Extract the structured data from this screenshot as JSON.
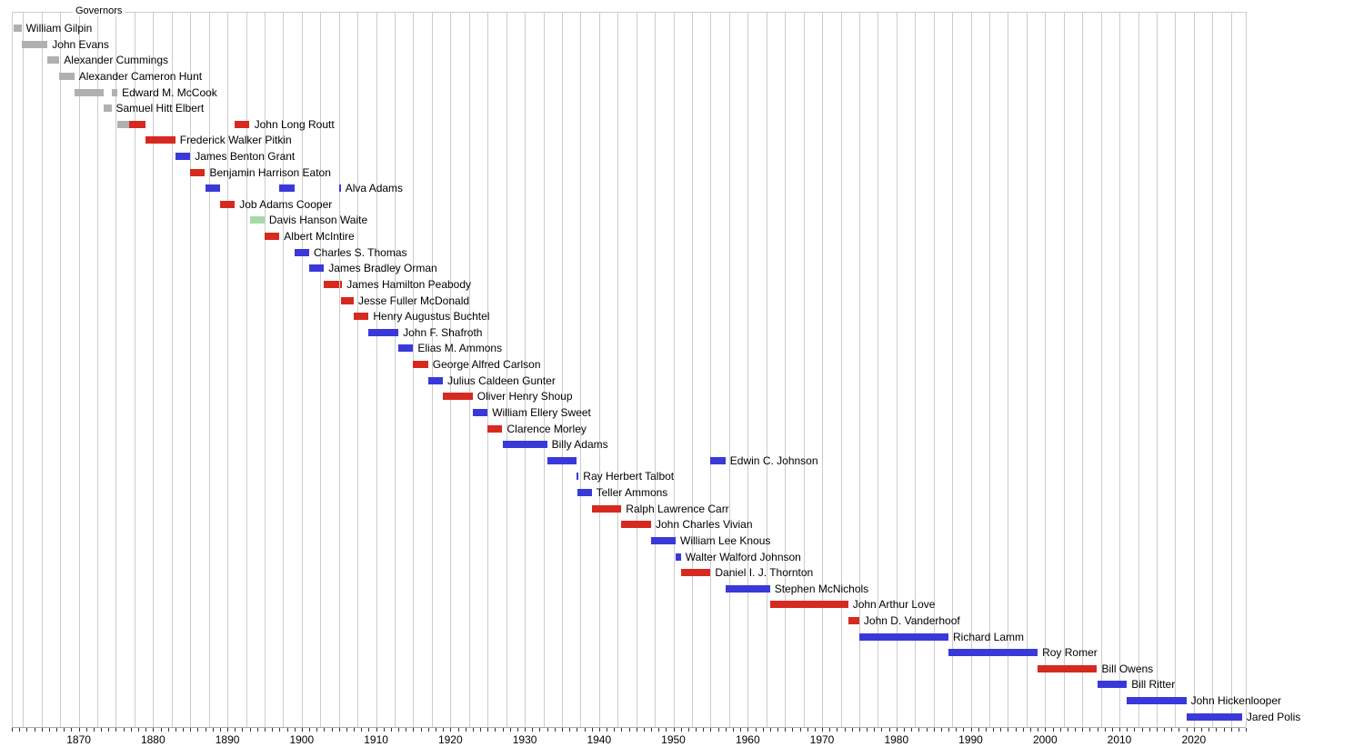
{
  "chart_data": {
    "type": "gantt",
    "title": "Governors",
    "x_axis": {
      "unit": "year",
      "range": [
        1861,
        2027
      ],
      "tick_interval_years": 1,
      "gridline_interval_years": 2.5,
      "decade_labels": [
        1870,
        1880,
        1890,
        1900,
        1910,
        1920,
        1930,
        1940,
        1950,
        1960,
        1970,
        1980,
        1990,
        2000,
        2010,
        2020
      ]
    },
    "colors": {
      "territorial": "#b0b0b0",
      "republican": "#d62a20",
      "democratic": "#3939d9",
      "populist": "#a9d9a9",
      "grid": "#cccccc",
      "axis_line": "#aaaaaa",
      "tick": "#333333",
      "text": "#000000"
    },
    "rows": [
      {
        "name": "William Gilpin",
        "terms": [
          [
            1861.2,
            1862.3,
            "territorial"
          ]
        ]
      },
      {
        "name": "John Evans",
        "terms": [
          [
            1862.3,
            1865.8,
            "territorial"
          ]
        ]
      },
      {
        "name": "Alexander Cummings",
        "terms": [
          [
            1865.8,
            1867.4,
            "territorial"
          ]
        ]
      },
      {
        "name": "Alexander Cameron Hunt",
        "terms": [
          [
            1867.4,
            1869.4,
            "territorial"
          ]
        ]
      },
      {
        "name": "Edward M. McCook",
        "terms": [
          [
            1869.4,
            1873.3,
            "territorial"
          ],
          [
            1874.4,
            1875.2,
            "territorial"
          ]
        ]
      },
      {
        "name": "Samuel Hitt Elbert",
        "terms": [
          [
            1873.3,
            1874.4,
            "territorial"
          ]
        ]
      },
      {
        "name": "John Long Routt",
        "terms": [
          [
            1875.2,
            1876.8,
            "territorial"
          ],
          [
            1876.8,
            1879.0,
            "republican"
          ],
          [
            1891.0,
            1893.0,
            "republican"
          ]
        ]
      },
      {
        "name": "Frederick Walker Pitkin",
        "terms": [
          [
            1879.0,
            1883.0,
            "republican"
          ]
        ]
      },
      {
        "name": "James Benton Grant",
        "terms": [
          [
            1883.0,
            1885.0,
            "democratic"
          ]
        ]
      },
      {
        "name": "Benjamin Harrison Eaton",
        "terms": [
          [
            1885.0,
            1887.0,
            "republican"
          ]
        ]
      },
      {
        "name": "Alva Adams",
        "terms": [
          [
            1887.0,
            1889.0,
            "democratic"
          ],
          [
            1897.0,
            1899.0,
            "democratic"
          ],
          [
            1905.0,
            1905.2,
            "democratic"
          ]
        ]
      },
      {
        "name": "Job Adams Cooper",
        "terms": [
          [
            1889.0,
            1891.0,
            "republican"
          ]
        ]
      },
      {
        "name": "Davis Hanson Waite",
        "terms": [
          [
            1893.0,
            1895.0,
            "populist"
          ]
        ]
      },
      {
        "name": "Albert McIntire",
        "terms": [
          [
            1895.0,
            1897.0,
            "republican"
          ]
        ]
      },
      {
        "name": "Charles S. Thomas",
        "terms": [
          [
            1899.0,
            1901.0,
            "democratic"
          ]
        ]
      },
      {
        "name": "James Bradley Orman",
        "terms": [
          [
            1901.0,
            1903.0,
            "democratic"
          ]
        ]
      },
      {
        "name": "James Hamilton Peabody",
        "terms": [
          [
            1903.0,
            1905.0,
            "republican"
          ],
          [
            1905.2,
            1905.3,
            "republican"
          ]
        ]
      },
      {
        "name": "Jesse Fuller McDonald",
        "terms": [
          [
            1905.3,
            1907.0,
            "republican"
          ]
        ]
      },
      {
        "name": "Henry Augustus Buchtel",
        "terms": [
          [
            1907.0,
            1909.0,
            "republican"
          ]
        ]
      },
      {
        "name": "John F. Shafroth",
        "terms": [
          [
            1909.0,
            1913.0,
            "democratic"
          ]
        ]
      },
      {
        "name": "Elias M. Ammons",
        "terms": [
          [
            1913.0,
            1915.0,
            "democratic"
          ]
        ]
      },
      {
        "name": "George Alfred Carlson",
        "terms": [
          [
            1915.0,
            1917.0,
            "republican"
          ]
        ]
      },
      {
        "name": "Julius Caldeen Gunter",
        "terms": [
          [
            1917.0,
            1919.0,
            "democratic"
          ]
        ]
      },
      {
        "name": "Oliver Henry Shoup",
        "terms": [
          [
            1919.0,
            1923.0,
            "republican"
          ]
        ]
      },
      {
        "name": "William Ellery Sweet",
        "terms": [
          [
            1923.0,
            1925.0,
            "democratic"
          ]
        ]
      },
      {
        "name": "Clarence Morley",
        "terms": [
          [
            1925.0,
            1927.0,
            "republican"
          ]
        ]
      },
      {
        "name": "Billy Adams",
        "terms": [
          [
            1927.0,
            1933.0,
            "democratic"
          ]
        ]
      },
      {
        "name": "Edwin C. Johnson",
        "terms": [
          [
            1933.0,
            1937.0,
            "democratic"
          ],
          [
            1955.0,
            1957.0,
            "democratic"
          ]
        ]
      },
      {
        "name": "Ray Herbert Talbot",
        "terms": [
          [
            1937.0,
            1937.1,
            "democratic"
          ]
        ]
      },
      {
        "name": "Teller Ammons",
        "terms": [
          [
            1937.1,
            1939.0,
            "democratic"
          ]
        ]
      },
      {
        "name": "Ralph Lawrence Carr",
        "terms": [
          [
            1939.0,
            1943.0,
            "republican"
          ]
        ]
      },
      {
        "name": "John Charles Vivian",
        "terms": [
          [
            1943.0,
            1947.0,
            "republican"
          ]
        ]
      },
      {
        "name": "William Lee Knous",
        "terms": [
          [
            1947.0,
            1950.3,
            "democratic"
          ]
        ]
      },
      {
        "name": "Walter Walford Johnson",
        "terms": [
          [
            1950.3,
            1951.0,
            "democratic"
          ]
        ]
      },
      {
        "name": "Daniel I. J. Thornton",
        "terms": [
          [
            1951.0,
            1955.0,
            "republican"
          ]
        ]
      },
      {
        "name": "Stephen McNichols",
        "terms": [
          [
            1957.0,
            1963.0,
            "democratic"
          ]
        ]
      },
      {
        "name": "John Arthur Love",
        "terms": [
          [
            1963.0,
            1973.5,
            "republican"
          ]
        ]
      },
      {
        "name": "John D. Vanderhoof",
        "terms": [
          [
            1973.5,
            1975.0,
            "republican"
          ]
        ]
      },
      {
        "name": "Richard Lamm",
        "terms": [
          [
            1975.0,
            1987.0,
            "democratic"
          ]
        ]
      },
      {
        "name": "Roy Romer",
        "terms": [
          [
            1987.0,
            1999.0,
            "democratic"
          ]
        ]
      },
      {
        "name": "Bill Owens",
        "terms": [
          [
            1999.0,
            2007.0,
            "republican"
          ]
        ]
      },
      {
        "name": "Bill Ritter",
        "terms": [
          [
            2007.0,
            2011.0,
            "democratic"
          ]
        ]
      },
      {
        "name": "John Hickenlooper",
        "terms": [
          [
            2011.0,
            2019.0,
            "democratic"
          ]
        ]
      },
      {
        "name": "Jared Polis",
        "terms": [
          [
            2019.0,
            2026.5,
            "democratic"
          ]
        ]
      }
    ]
  }
}
